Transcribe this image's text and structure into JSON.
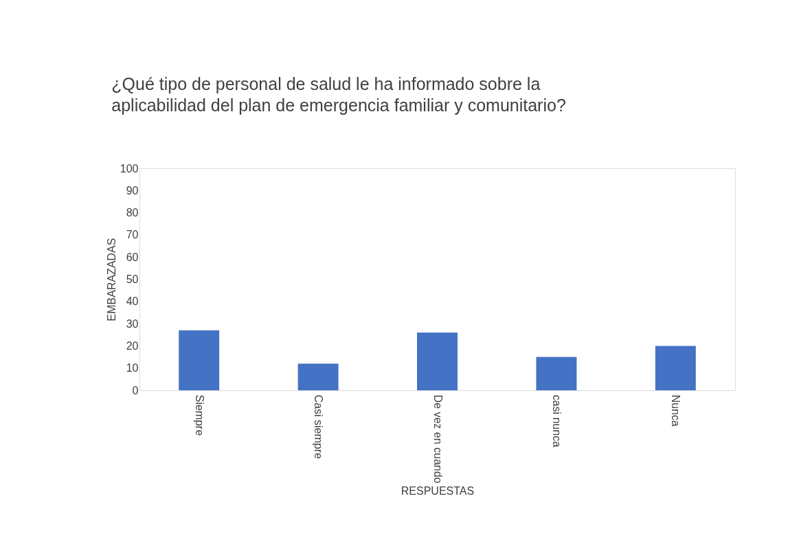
{
  "chart_data": {
    "type": "bar",
    "title": "¿Qué tipo de personal de salud le ha informado sobre la aplicabilidad del plan de emergencia familiar y comunitario?",
    "xlabel": "RESPUESTAS",
    "ylabel": "EMBARAZADAS",
    "categories": [
      "Siempre",
      "Casi siempre",
      "De vez en cuando",
      "casi nunca",
      "Nunca"
    ],
    "values": [
      27,
      12,
      26,
      15,
      20
    ],
    "color": "#4472c4",
    "ylim": [
      0,
      100
    ],
    "yticks": [
      0,
      10,
      20,
      30,
      40,
      50,
      60,
      70,
      80,
      90,
      100
    ],
    "grid": false
  }
}
